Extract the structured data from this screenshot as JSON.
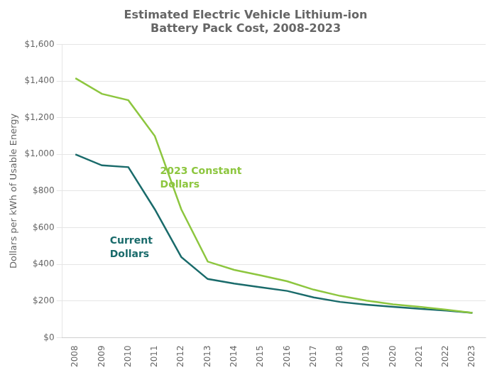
{
  "chart_data": {
    "type": "line",
    "title": "Estimated Electric Vehicle Lithium-ion\nBattery Pack Cost, 2008-2023",
    "y_label": "Dollars per kWh of Usable Energy",
    "x": [
      2008,
      2009,
      2010,
      2011,
      2012,
      2013,
      2014,
      2015,
      2016,
      2017,
      2018,
      2019,
      2020,
      2021,
      2022,
      2023
    ],
    "series": [
      {
        "name": "2023 Constant\nDollars",
        "color": "#8dc63f",
        "values": [
          1415,
          1330,
          1295,
          1100,
          700,
          415,
          370,
          340,
          308,
          262,
          228,
          202,
          182,
          168,
          153,
          135
        ]
      },
      {
        "name": "Current\nDollars",
        "color": "#1a6b6b",
        "values": [
          1000,
          940,
          930,
          700,
          440,
          320,
          295,
          275,
          255,
          220,
          195,
          180,
          168,
          158,
          148,
          135
        ]
      }
    ],
    "annotations": [
      {
        "text": "2023 Constant\nDollars",
        "x": 2011.2,
        "y": 870,
        "color": "#8dc63f"
      },
      {
        "text": "Current\nDollars",
        "x": 2009.3,
        "y": 490,
        "color": "#1a6b6b"
      }
    ],
    "xlim": [
      2007.5,
      2023.5
    ],
    "xticks": [
      2008,
      2009,
      2010,
      2011,
      2012,
      2013,
      2014,
      2015,
      2016,
      2017,
      2018,
      2019,
      2020,
      2021,
      2022,
      2023
    ],
    "ylim": [
      0,
      1600
    ],
    "yticks": [
      {
        "value": 0,
        "label": "$0"
      },
      {
        "value": 200,
        "label": "$200"
      },
      {
        "value": 400,
        "label": "$400"
      },
      {
        "value": 600,
        "label": "$600"
      },
      {
        "value": 800,
        "label": "$800"
      },
      {
        "value": 1000,
        "label": "$1,000"
      },
      {
        "value": 1200,
        "label": "$1,200"
      },
      {
        "value": 1400,
        "label": "$1,400"
      },
      {
        "value": 1600,
        "label": "$1,600"
      }
    ],
    "grid": true
  }
}
